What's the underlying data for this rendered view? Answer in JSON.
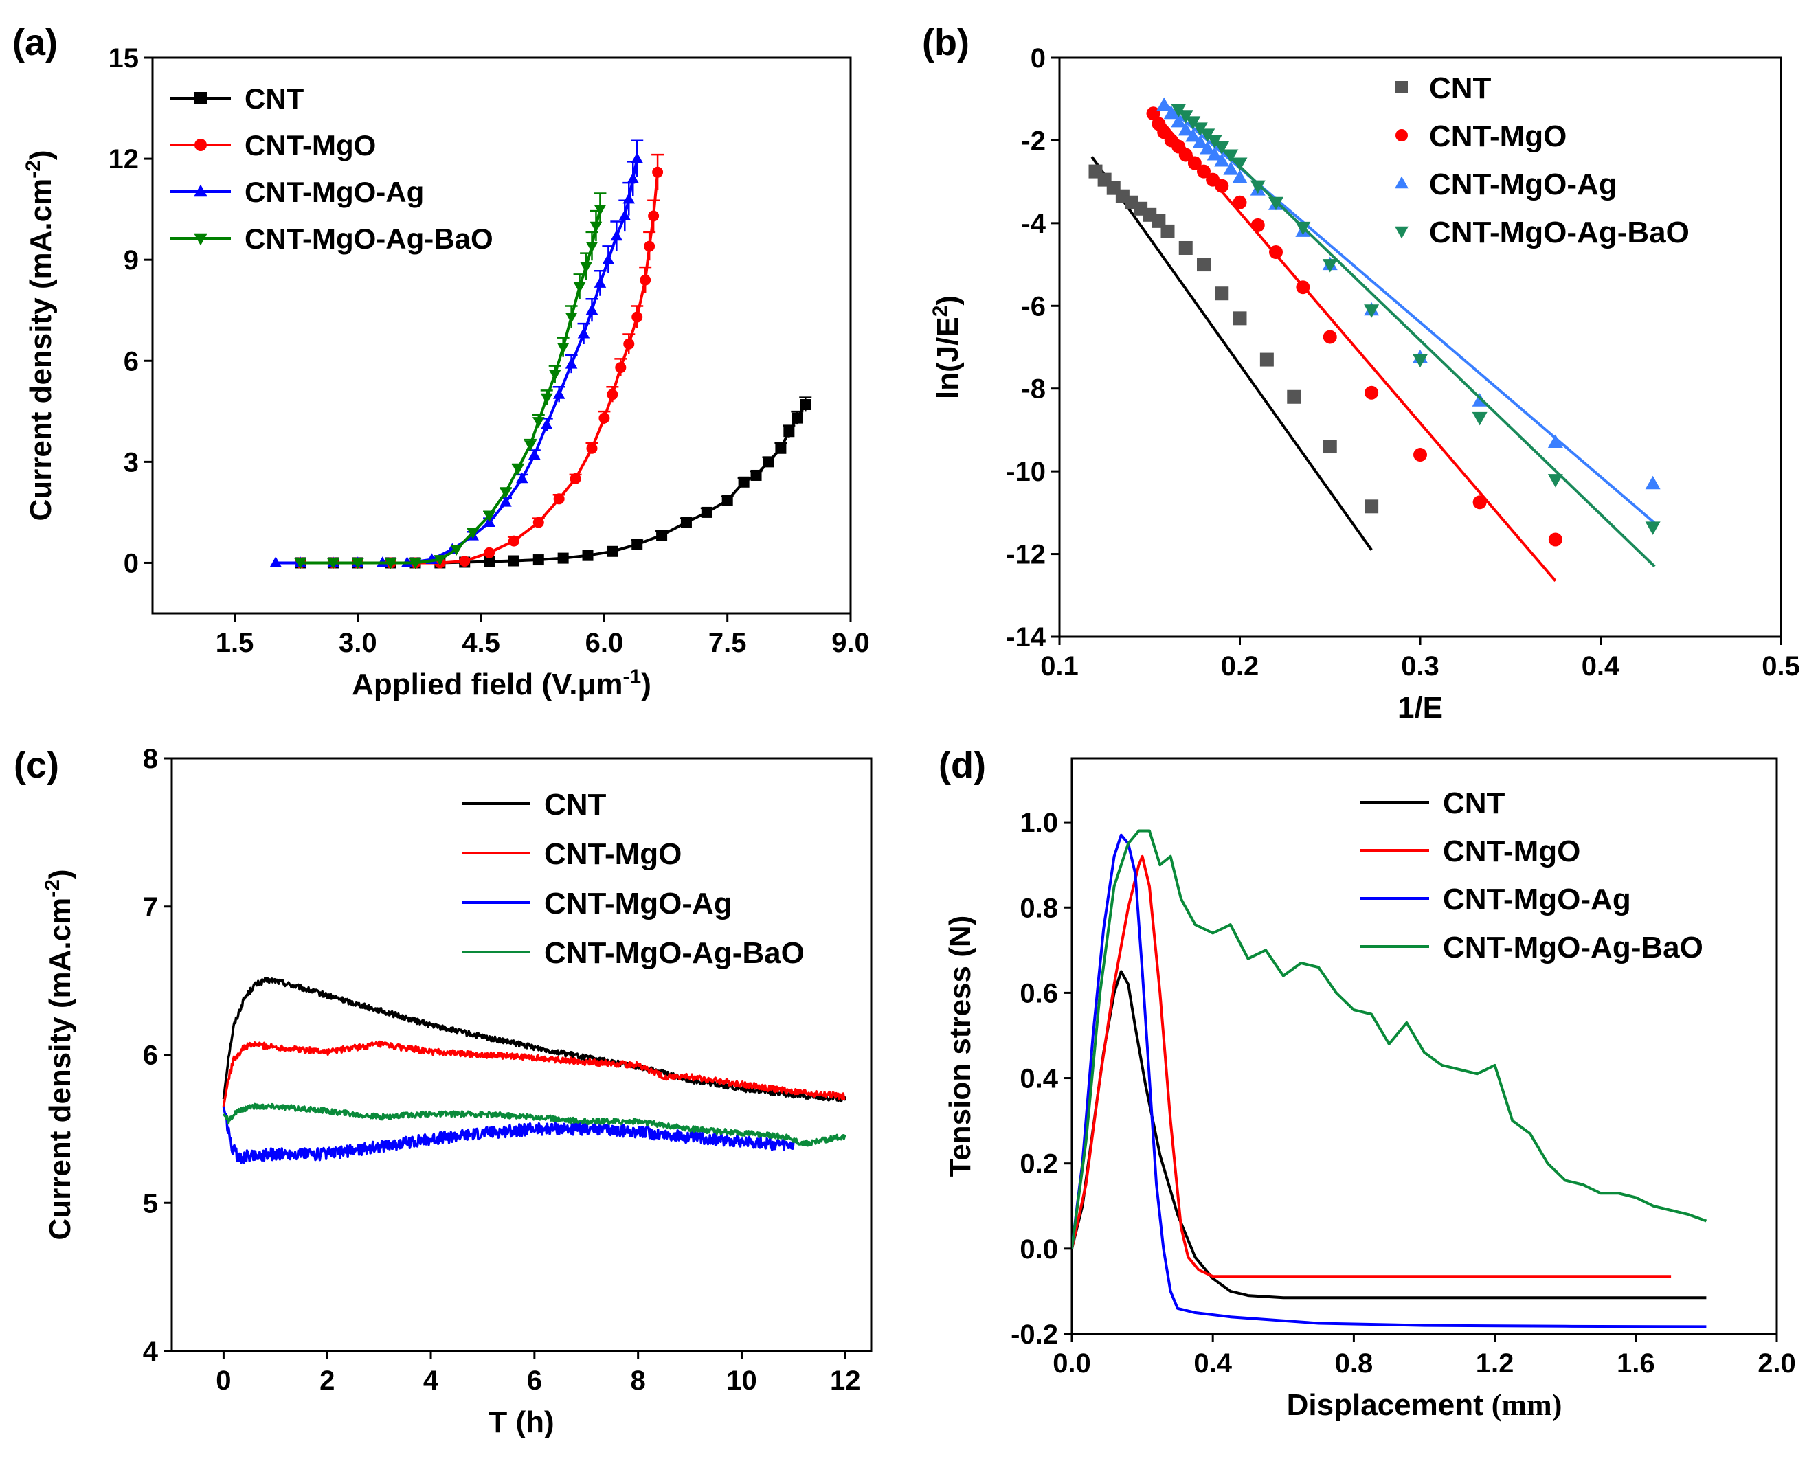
{
  "chart_data": [
    {
      "id": "a",
      "panel_label": "(a)",
      "type": "line",
      "xlabel": "Applied field (V.μm",
      "xlabel_sup": "-1",
      "xlabel_end": ")",
      "ylabel": "Current density (mA.cm",
      "ylabel_sup": "-2",
      "ylabel_end": ")",
      "xlim": [
        0.5,
        9.0
      ],
      "ylim": [
        -1.5,
        15
      ],
      "xticks": [
        1.5,
        3.0,
        4.5,
        6.0,
        7.5,
        9.0
      ],
      "xtick_labels": [
        "1.5",
        "3.0",
        "4.5",
        "6.0",
        "7.5",
        "9.0"
      ],
      "yticks": [
        0,
        3,
        6,
        9,
        12,
        15
      ],
      "ytick_labels": [
        "0",
        "3",
        "6",
        "9",
        "12",
        "15"
      ],
      "legend_position": "top-left",
      "series": [
        {
          "name": "CNT",
          "color": "#000000",
          "marker": "square",
          "x": [
            2.3,
            2.7,
            3.0,
            3.4,
            3.7,
            4.0,
            4.3,
            4.6,
            4.9,
            5.2,
            5.5,
            5.8,
            6.1,
            6.4,
            6.7,
            7.0,
            7.25,
            7.5,
            7.7,
            7.85,
            8.0,
            8.15,
            8.25,
            8.35,
            8.45
          ],
          "y": [
            0,
            0,
            0,
            0,
            0,
            0,
            0.02,
            0.04,
            0.06,
            0.09,
            0.14,
            0.22,
            0.34,
            0.55,
            0.82,
            1.2,
            1.5,
            1.85,
            2.4,
            2.6,
            3.0,
            3.4,
            3.9,
            4.3,
            4.7
          ]
        },
        {
          "name": "CNT-MgO",
          "color": "#ff0000",
          "marker": "circle",
          "x": [
            2.3,
            2.7,
            3.0,
            3.4,
            3.7,
            4.0,
            4.3,
            4.6,
            4.9,
            5.2,
            5.45,
            5.65,
            5.85,
            6.0,
            6.1,
            6.2,
            6.3,
            6.4,
            6.5,
            6.55,
            6.6,
            6.65
          ],
          "y": [
            0,
            0,
            0,
            0,
            0,
            0,
            0.05,
            0.3,
            0.65,
            1.2,
            1.9,
            2.5,
            3.4,
            4.3,
            5.0,
            5.8,
            6.5,
            7.3,
            8.4,
            9.4,
            10.3,
            11.6
          ]
        },
        {
          "name": "CNT-MgO-Ag",
          "color": "#0000ff",
          "marker": "triangle-up",
          "x": [
            2.0,
            2.3,
            2.7,
            3.0,
            3.3,
            3.6,
            3.9,
            4.15,
            4.4,
            4.6,
            4.8,
            5.0,
            5.15,
            5.3,
            5.45,
            5.6,
            5.75,
            5.85,
            5.95,
            6.05,
            6.15,
            6.25,
            6.3,
            6.35,
            6.4
          ],
          "y": [
            0,
            0,
            0,
            0,
            0,
            0,
            0.1,
            0.4,
            0.8,
            1.2,
            1.8,
            2.5,
            3.2,
            4.1,
            5.0,
            5.9,
            6.8,
            7.5,
            8.3,
            9.0,
            9.7,
            10.3,
            10.8,
            11.4,
            12.0
          ]
        },
        {
          "name": "CNT-MgO-Ag-BaO",
          "color": "#008000",
          "marker": "triangle-down",
          "x": [
            2.3,
            2.7,
            3.0,
            3.4,
            3.7,
            4.0,
            4.2,
            4.4,
            4.6,
            4.8,
            4.95,
            5.1,
            5.2,
            5.3,
            5.4,
            5.5,
            5.6,
            5.7,
            5.78,
            5.85,
            5.9,
            5.95
          ],
          "y": [
            0,
            0,
            0,
            0,
            0,
            0.1,
            0.4,
            0.9,
            1.4,
            2.1,
            2.8,
            3.5,
            4.2,
            4.9,
            5.6,
            6.4,
            7.3,
            8.2,
            8.8,
            9.4,
            10.0,
            10.5
          ]
        }
      ]
    },
    {
      "id": "b",
      "panel_label": "(b)",
      "type": "scatter",
      "xlabel": "1/E",
      "ylabel": "ln(J/E",
      "ylabel_sup": "2",
      "ylabel_end": ")",
      "xlim": [
        0.1,
        0.5
      ],
      "ylim": [
        -14,
        0
      ],
      "xticks": [
        0.1,
        0.2,
        0.3,
        0.4,
        0.5
      ],
      "xtick_labels": [
        "0.1",
        "0.2",
        "0.3",
        "0.4",
        "0.5"
      ],
      "yticks": [
        0,
        -2,
        -4,
        -6,
        -8,
        -10,
        -12,
        -14
      ],
      "ytick_labels": [
        "0",
        "-2",
        "-4",
        "-6",
        "-8",
        "-10",
        "-12",
        "-14"
      ],
      "legend_position": "top-right",
      "series": [
        {
          "name": "CNT",
          "color": "#555555",
          "marker": "square",
          "x": [
            0.12,
            0.125,
            0.13,
            0.135,
            0.14,
            0.145,
            0.15,
            0.155,
            0.16,
            0.17,
            0.18,
            0.19,
            0.2,
            0.215,
            0.23,
            0.25,
            0.273
          ],
          "y": [
            -2.75,
            -2.95,
            -3.15,
            -3.35,
            -3.5,
            -3.65,
            -3.8,
            -3.95,
            -4.2,
            -4.6,
            -5.0,
            -5.7,
            -6.3,
            -7.3,
            -8.2,
            -9.4,
            -10.85
          ],
          "fit": [
            [
              0.118,
              -2.4
            ],
            [
              0.273,
              -11.9
            ]
          ]
        },
        {
          "name": "CNT-MgO",
          "color": "#ff0000",
          "marker": "circle",
          "x": [
            0.152,
            0.155,
            0.158,
            0.162,
            0.166,
            0.17,
            0.175,
            0.18,
            0.185,
            0.19,
            0.2,
            0.21,
            0.22,
            0.235,
            0.25,
            0.273,
            0.3,
            0.333,
            0.375
          ],
          "y": [
            -1.35,
            -1.6,
            -1.8,
            -2.0,
            -2.15,
            -2.35,
            -2.55,
            -2.75,
            -2.95,
            -3.1,
            -3.5,
            -4.05,
            -4.7,
            -5.55,
            -6.75,
            -8.1,
            -9.6,
            -10.75,
            -11.65
          ],
          "fit": [
            [
              0.152,
              -1.3
            ],
            [
              0.375,
              -12.65
            ]
          ]
        },
        {
          "name": "CNT-MgO-Ag",
          "color": "#3a7fff",
          "marker": "triangle-up",
          "x": [
            0.158,
            0.162,
            0.166,
            0.17,
            0.174,
            0.178,
            0.182,
            0.186,
            0.19,
            0.195,
            0.2,
            0.21,
            0.22,
            0.235,
            0.25,
            0.273,
            0.3,
            0.333,
            0.375,
            0.429
          ],
          "y": [
            -1.15,
            -1.35,
            -1.55,
            -1.75,
            -1.9,
            -2.05,
            -2.2,
            -2.35,
            -2.5,
            -2.7,
            -2.9,
            -3.2,
            -3.55,
            -4.2,
            -5.0,
            -6.1,
            -7.25,
            -8.3,
            -9.3,
            -10.3
          ],
          "fit": [
            [
              0.158,
              -1.1
            ],
            [
              0.43,
              -11.25
            ]
          ]
        },
        {
          "name": "CNT-MgO-Ag-BaO",
          "color": "#1a8a5a",
          "marker": "triangle-down",
          "x": [
            0.166,
            0.17,
            0.174,
            0.178,
            0.182,
            0.186,
            0.19,
            0.195,
            0.2,
            0.21,
            0.22,
            0.235,
            0.25,
            0.273,
            0.3,
            0.333,
            0.375,
            0.429
          ],
          "y": [
            -1.25,
            -1.4,
            -1.55,
            -1.7,
            -1.85,
            -2.0,
            -2.15,
            -2.35,
            -2.55,
            -3.1,
            -3.5,
            -4.1,
            -5.0,
            -6.1,
            -7.3,
            -8.7,
            -10.2,
            -11.35
          ],
          "fit": [
            [
              0.166,
              -1.2
            ],
            [
              0.43,
              -12.3
            ]
          ]
        }
      ]
    },
    {
      "id": "c",
      "panel_label": "(c)",
      "type": "line",
      "xlabel": "T (h)",
      "ylabel": "Current density (mA.cm",
      "ylabel_sup": "-2",
      "ylabel_end": ")",
      "xlim": [
        -1,
        12.5
      ],
      "ylim": [
        4,
        8
      ],
      "xticks": [
        0,
        2,
        4,
        6,
        8,
        10,
        12
      ],
      "xtick_labels": [
        "0",
        "2",
        "4",
        "6",
        "8",
        "10",
        "12"
      ],
      "yticks": [
        4,
        5,
        6,
        7,
        8
      ],
      "ytick_labels": [
        "4",
        "5",
        "6",
        "7",
        "8"
      ],
      "legend_position": "top-right",
      "series": [
        {
          "name": "CNT",
          "color": "#000000",
          "noise": 0.018,
          "x": [
            0,
            0.1,
            0.2,
            0.4,
            0.6,
            0.8,
            1.0,
            1.5,
            2,
            3,
            4,
            5,
            6,
            7,
            8,
            9,
            10,
            11,
            12
          ],
          "y": [
            5.7,
            6.0,
            6.2,
            6.38,
            6.47,
            6.5,
            6.5,
            6.45,
            6.4,
            6.3,
            6.2,
            6.12,
            6.05,
            5.98,
            5.92,
            5.83,
            5.77,
            5.73,
            5.7
          ]
        },
        {
          "name": "CNT-MgO",
          "color": "#ff0000",
          "noise": 0.02,
          "x": [
            0,
            0.1,
            0.2,
            0.4,
            0.6,
            1,
            2,
            3,
            4,
            5,
            6,
            7,
            8,
            8.5,
            9,
            10,
            11,
            12
          ],
          "y": [
            5.65,
            5.85,
            5.97,
            6.05,
            6.07,
            6.05,
            6.02,
            6.07,
            6.02,
            6.0,
            5.98,
            5.95,
            5.93,
            5.85,
            5.85,
            5.8,
            5.75,
            5.72
          ]
        },
        {
          "name": "CNT-MgO-Ag",
          "color": "#0000ff",
          "noise": 0.04,
          "x": [
            0,
            0.15,
            0.3,
            0.5,
            1,
            2,
            3,
            4,
            5,
            6,
            7,
            8,
            9,
            10,
            11
          ],
          "y": [
            5.65,
            5.38,
            5.3,
            5.32,
            5.33,
            5.33,
            5.38,
            5.43,
            5.47,
            5.5,
            5.5,
            5.48,
            5.44,
            5.42,
            5.38
          ]
        },
        {
          "name": "CNT-MgO-Ag-BaO",
          "color": "#0a8a3a",
          "noise": 0.018,
          "x": [
            0,
            0.1,
            0.2,
            0.5,
            1,
            2,
            3,
            4,
            5,
            6,
            7,
            8,
            9,
            10,
            10.8,
            11.2,
            12
          ],
          "y": [
            5.6,
            5.55,
            5.6,
            5.65,
            5.65,
            5.62,
            5.58,
            5.6,
            5.6,
            5.58,
            5.55,
            5.55,
            5.5,
            5.47,
            5.45,
            5.4,
            5.45
          ]
        }
      ]
    },
    {
      "id": "d",
      "panel_label": "(d)",
      "type": "line",
      "xlabel": "Displacement",
      "xlabel_unit": "(mm)",
      "ylabel": "Tension stress (N)",
      "xlim": [
        0,
        2.0
      ],
      "ylim": [
        -0.2,
        1.15
      ],
      "xticks": [
        0.0,
        0.4,
        0.8,
        1.2,
        1.6,
        2.0
      ],
      "xtick_labels": [
        "0.0",
        "0.4",
        "0.8",
        "1.2",
        "1.6",
        "2.0"
      ],
      "yticks": [
        -0.2,
        0.0,
        0.2,
        0.4,
        0.6,
        0.8,
        1.0
      ],
      "ytick_labels": [
        "-0.2",
        "0.0",
        "0.2",
        "0.4",
        "0.6",
        "0.8",
        "1.0"
      ],
      "legend_position": "top-right",
      "series": [
        {
          "name": "CNT",
          "color": "#000000",
          "x": [
            0,
            0.03,
            0.06,
            0.09,
            0.12,
            0.14,
            0.16,
            0.18,
            0.21,
            0.25,
            0.3,
            0.35,
            0.4,
            0.45,
            0.5,
            0.6,
            1.0,
            1.4,
            1.8
          ],
          "y": [
            0,
            0.1,
            0.28,
            0.46,
            0.6,
            0.65,
            0.62,
            0.52,
            0.38,
            0.22,
            0.08,
            -0.02,
            -0.07,
            -0.1,
            -0.11,
            -0.115,
            -0.115,
            -0.115,
            -0.115
          ]
        },
        {
          "name": "CNT-MgO",
          "color": "#ff0000",
          "x": [
            0,
            0.04,
            0.08,
            0.12,
            0.16,
            0.19,
            0.2,
            0.22,
            0.25,
            0.28,
            0.31,
            0.33,
            0.36,
            0.4,
            0.5,
            1.0,
            1.4,
            1.7
          ],
          "y": [
            0,
            0.15,
            0.4,
            0.62,
            0.8,
            0.9,
            0.92,
            0.85,
            0.6,
            0.3,
            0.05,
            -0.02,
            -0.05,
            -0.065,
            -0.065,
            -0.065,
            -0.065,
            -0.065
          ]
        },
        {
          "name": "CNT-MgO-Ag",
          "color": "#0000ff",
          "x": [
            0,
            0.03,
            0.06,
            0.09,
            0.12,
            0.14,
            0.16,
            0.18,
            0.2,
            0.22,
            0.24,
            0.26,
            0.28,
            0.3,
            0.35,
            0.45,
            0.7,
            1.0,
            1.4,
            1.8
          ],
          "y": [
            0,
            0.2,
            0.5,
            0.75,
            0.92,
            0.97,
            0.95,
            0.88,
            0.65,
            0.4,
            0.15,
            0.0,
            -0.1,
            -0.14,
            -0.15,
            -0.16,
            -0.175,
            -0.18,
            -0.182,
            -0.183
          ]
        },
        {
          "name": "CNT-MgO-Ag-BaO",
          "color": "#0a8a3a",
          "x": [
            0,
            0.04,
            0.08,
            0.12,
            0.16,
            0.19,
            0.22,
            0.25,
            0.28,
            0.31,
            0.35,
            0.4,
            0.45,
            0.5,
            0.55,
            0.6,
            0.65,
            0.7,
            0.75,
            0.8,
            0.85,
            0.9,
            0.95,
            1.0,
            1.05,
            1.1,
            1.15,
            1.2,
            1.25,
            1.3,
            1.35,
            1.4,
            1.45,
            1.5,
            1.55,
            1.6,
            1.65,
            1.7,
            1.75,
            1.8
          ],
          "y": [
            0,
            0.25,
            0.6,
            0.85,
            0.95,
            0.98,
            0.98,
            0.9,
            0.92,
            0.82,
            0.76,
            0.74,
            0.76,
            0.68,
            0.7,
            0.64,
            0.67,
            0.66,
            0.6,
            0.56,
            0.55,
            0.48,
            0.53,
            0.46,
            0.43,
            0.42,
            0.41,
            0.43,
            0.3,
            0.27,
            0.2,
            0.16,
            0.15,
            0.13,
            0.13,
            0.12,
            0.1,
            0.09,
            0.08,
            0.065
          ]
        }
      ]
    }
  ]
}
